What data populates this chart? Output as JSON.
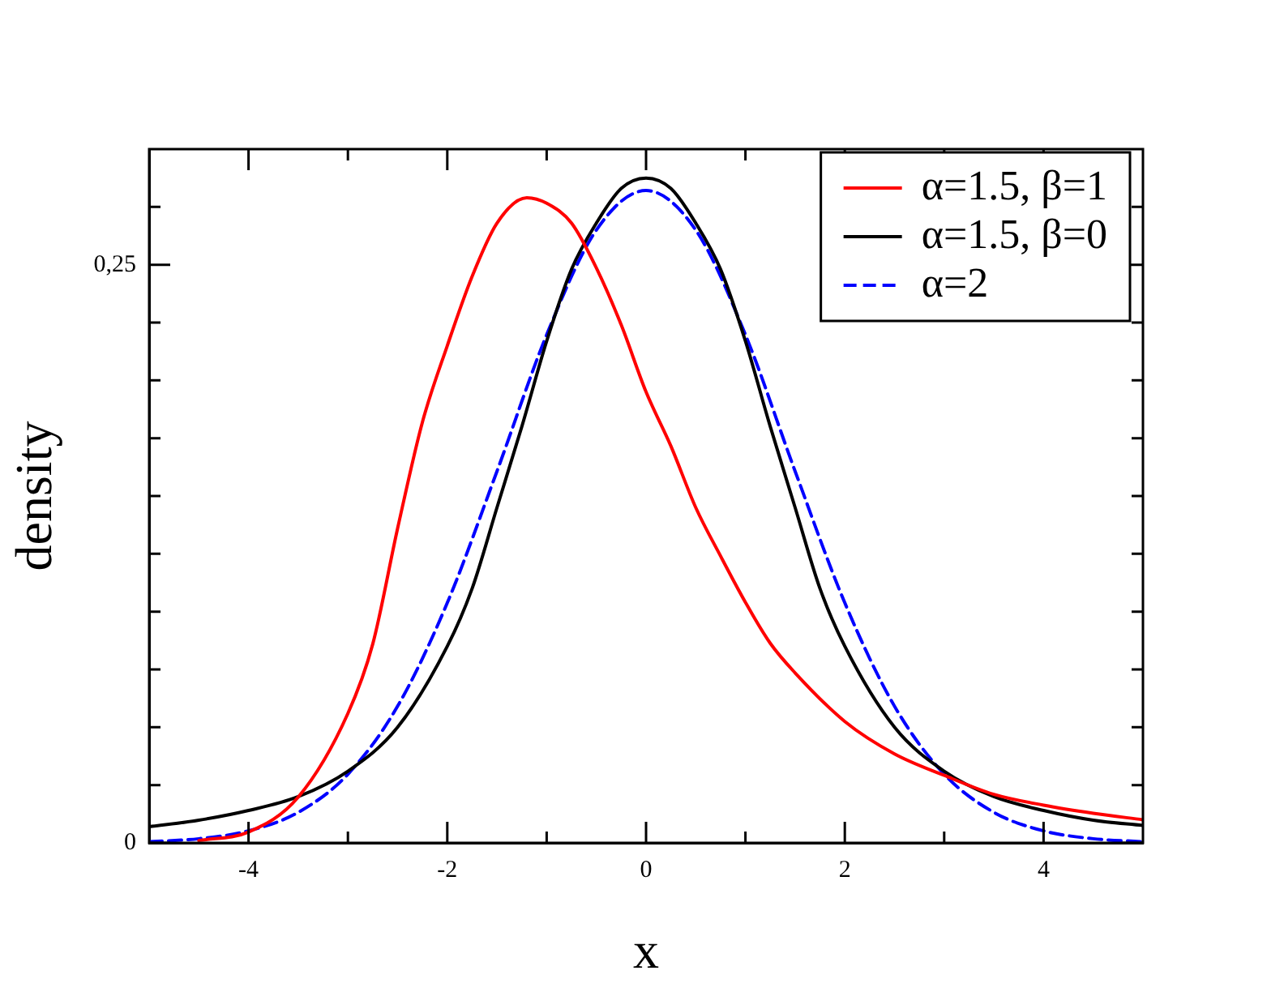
{
  "chart_data": {
    "type": "line",
    "xlabel": "x",
    "ylabel": "density",
    "xlim": [
      -5,
      5
    ],
    "ylim": [
      0,
      0.3
    ],
    "xticks": [
      -4,
      {
        "value": -3,
        "label": null
      },
      -2,
      {
        "value": -1,
        "label": null
      },
      0,
      {
        "value": 1,
        "label": null
      },
      2,
      {
        "value": 3,
        "label": null
      },
      4
    ],
    "yticks": [
      0,
      {
        "value": 0.025,
        "label": null
      },
      {
        "value": 0.05,
        "label": null
      },
      {
        "value": 0.075,
        "label": null
      },
      {
        "value": 0.1,
        "label": null
      },
      {
        "value": 0.125,
        "label": null
      },
      {
        "value": 0.15,
        "label": null
      },
      {
        "value": 0.175,
        "label": null
      },
      {
        "value": 0.2,
        "label": null
      },
      {
        "value": 0.225,
        "label": null
      },
      {
        "value": 0.25,
        "label": "0,25"
      },
      {
        "value": 0.275,
        "label": null
      }
    ],
    "legend": "top right",
    "marker": "none",
    "series": [
      {
        "name": "α=1.5, β=1",
        "color": "#ff0000",
        "line_style": "solid",
        "x": [
          -4.5,
          -4,
          -3.5,
          -3,
          -2.75,
          -2.5,
          -2.25,
          -2,
          -1.75,
          -1.5,
          -1.2,
          -1,
          -0.75,
          -0.5,
          -0.25,
          0,
          0.25,
          0.5,
          0.75,
          1,
          1.25,
          1.5,
          2,
          2.5,
          3,
          3.5,
          4,
          4.5,
          5
        ],
        "values": [
          0.001,
          0.0047,
          0.0198,
          0.056,
          0.086,
          0.136,
          0.182,
          0.215,
          0.245,
          0.268,
          0.279,
          0.2766,
          0.268,
          0.2486,
          0.224,
          0.195,
          0.1716,
          0.145,
          0.124,
          0.104,
          0.0863,
          0.0735,
          0.0525,
          0.0385,
          0.0292,
          0.021,
          0.0163,
          0.0128,
          0.01
        ]
      },
      {
        "name": "α=1.5, β=0",
        "color": "#000000",
        "line_style": "solid",
        "x": [
          -5,
          -4.5,
          -4,
          -3.5,
          -3,
          -2.5,
          -2,
          -1.75,
          -1.5,
          -1.25,
          -1,
          -0.75,
          -0.5,
          -0.25,
          0,
          0.25,
          0.5,
          0.75,
          1,
          1.25,
          1.5,
          1.75,
          2,
          2.5,
          3,
          3.5,
          4,
          4.5,
          5
        ],
        "values": [
          0.007,
          0.0098,
          0.014,
          0.02,
          0.031,
          0.05,
          0.085,
          0.11,
          0.145,
          0.18,
          0.217,
          0.248,
          0.268,
          0.283,
          0.2875,
          0.283,
          0.268,
          0.248,
          0.217,
          0.18,
          0.145,
          0.11,
          0.085,
          0.05,
          0.031,
          0.02,
          0.014,
          0.0098,
          0.0075
        ]
      },
      {
        "name": "α=2",
        "color": "#0000ff",
        "line_style": "dashed",
        "x": [
          -5,
          -4.5,
          -4,
          -3.5,
          -3,
          -2.5,
          -2,
          -1.5,
          -1,
          -0.5,
          0,
          0.5,
          1,
          1.5,
          2,
          2.5,
          3,
          3.5,
          4,
          4.5,
          5
        ],
        "values": [
          0.0005,
          0.0018,
          0.0052,
          0.0132,
          0.0297,
          0.0591,
          0.1038,
          0.1607,
          0.2197,
          0.265,
          0.2821,
          0.265,
          0.2197,
          0.1607,
          0.1038,
          0.0591,
          0.0297,
          0.0132,
          0.0052,
          0.0018,
          0.0005
        ]
      }
    ]
  }
}
